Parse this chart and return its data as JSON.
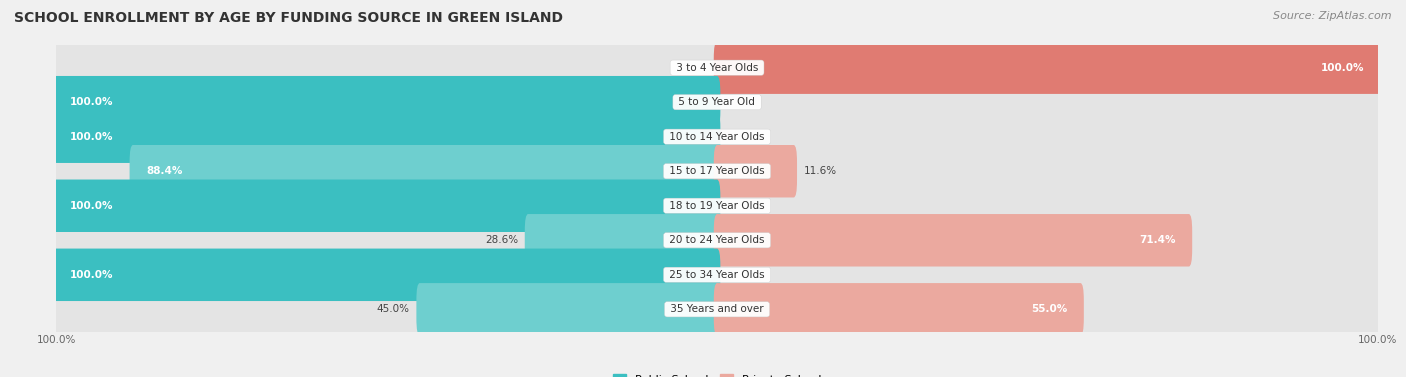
{
  "title": "SCHOOL ENROLLMENT BY AGE BY FUNDING SOURCE IN GREEN ISLAND",
  "source": "Source: ZipAtlas.com",
  "categories": [
    "3 to 4 Year Olds",
    "5 to 9 Year Old",
    "10 to 14 Year Olds",
    "15 to 17 Year Olds",
    "18 to 19 Year Olds",
    "20 to 24 Year Olds",
    "25 to 34 Year Olds",
    "35 Years and over"
  ],
  "public_pct": [
    0.0,
    100.0,
    100.0,
    88.4,
    100.0,
    28.6,
    100.0,
    45.0
  ],
  "private_pct": [
    100.0,
    0.0,
    0.0,
    11.6,
    0.0,
    71.4,
    0.0,
    55.0
  ],
  "public_color_full": "#3BBFC1",
  "public_color_partial": "#6ECFCF",
  "private_color_full": "#E07B72",
  "private_color_partial": "#EBA99F",
  "track_color": "#E4E4E4",
  "row_bg_even": "#F5F5F5",
  "row_bg_odd": "#EBEBEB",
  "bg_color": "#F0F0F0",
  "title_fontsize": 10,
  "source_fontsize": 8,
  "bar_label_fontsize": 7.5,
  "cat_label_fontsize": 7.5,
  "legend_fontsize": 8,
  "axis_label_fontsize": 7.5
}
